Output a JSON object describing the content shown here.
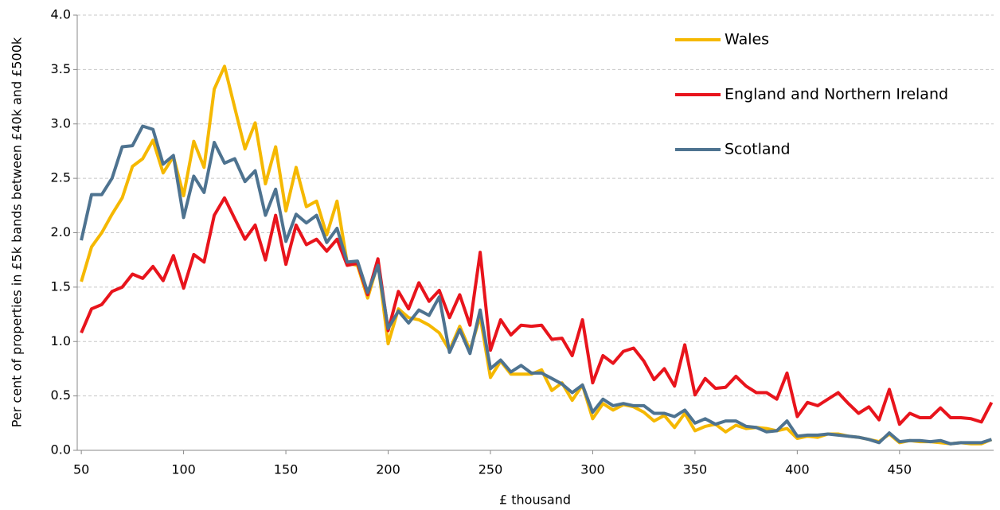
{
  "chart_data": {
    "type": "line",
    "y_label": "Per cent of properties in £5k bands between £40k and £500k",
    "x_label": "£ thousand",
    "x": [
      50,
      55,
      60,
      65,
      70,
      75,
      80,
      85,
      90,
      95,
      100,
      105,
      110,
      115,
      120,
      125,
      130,
      135,
      140,
      145,
      150,
      155,
      160,
      165,
      170,
      175,
      180,
      185,
      190,
      195,
      200,
      205,
      210,
      215,
      220,
      225,
      230,
      235,
      240,
      245,
      250,
      255,
      260,
      265,
      270,
      275,
      280,
      285,
      290,
      295,
      300,
      305,
      310,
      315,
      320,
      325,
      330,
      335,
      340,
      345,
      350,
      355,
      360,
      365,
      370,
      375,
      380,
      385,
      390,
      395,
      400,
      405,
      410,
      415,
      420,
      425,
      430,
      435,
      440,
      445,
      450,
      455,
      460,
      465,
      470,
      475,
      480,
      485,
      490,
      495
    ],
    "xlim": [
      48,
      496
    ],
    "xticks": [
      50,
      100,
      150,
      200,
      250,
      300,
      350,
      400,
      450
    ],
    "ylim": [
      0,
      4
    ],
    "yticks": [
      {
        "value": 0,
        "label": "0.0"
      },
      0.5,
      {
        "value": 1,
        "label": "1.0"
      },
      1.5,
      {
        "value": 2,
        "label": "2.0"
      },
      2.5,
      {
        "value": 3,
        "label": "3.0"
      },
      3.5,
      {
        "value": 4,
        "label": "4.0"
      }
    ],
    "grid": true,
    "legend": "top-right",
    "series": [
      {
        "name": "Wales",
        "color": "#f5b800",
        "values": [
          1.55,
          1.87,
          2.0,
          2.17,
          2.32,
          2.61,
          2.68,
          2.85,
          2.55,
          2.7,
          2.34,
          2.84,
          2.6,
          3.32,
          3.53,
          3.15,
          2.77,
          3.01,
          2.45,
          2.79,
          2.2,
          2.6,
          2.24,
          2.29,
          1.98,
          2.29,
          1.72,
          1.7,
          1.4,
          1.72,
          0.98,
          1.3,
          1.22,
          1.2,
          1.15,
          1.08,
          0.92,
          1.14,
          0.92,
          1.23,
          0.67,
          0.82,
          0.7,
          0.7,
          0.7,
          0.74,
          0.55,
          0.62,
          0.46,
          0.6,
          0.29,
          0.43,
          0.37,
          0.42,
          0.4,
          0.35,
          0.27,
          0.32,
          0.21,
          0.34,
          0.18,
          0.22,
          0.24,
          0.17,
          0.23,
          0.2,
          0.21,
          0.2,
          0.18,
          0.2,
          0.11,
          0.13,
          0.12,
          0.15,
          0.15,
          0.13,
          0.12,
          0.1,
          0.08,
          0.15,
          0.07,
          0.09,
          0.08,
          0.08,
          0.07,
          0.06,
          0.07,
          0.06,
          0.06,
          0.1
        ]
      },
      {
        "name": "England and Northern Ireland",
        "color": "#e8141c",
        "values": [
          1.08,
          1.3,
          1.34,
          1.46,
          1.5,
          1.62,
          1.58,
          1.69,
          1.56,
          1.79,
          1.49,
          1.8,
          1.73,
          2.16,
          2.32,
          2.13,
          1.94,
          2.07,
          1.75,
          2.16,
          1.71,
          2.07,
          1.89,
          1.94,
          1.83,
          1.94,
          1.7,
          1.72,
          1.43,
          1.76,
          1.1,
          1.46,
          1.3,
          1.54,
          1.37,
          1.47,
          1.22,
          1.43,
          1.15,
          1.82,
          0.92,
          1.2,
          1.06,
          1.15,
          1.14,
          1.15,
          1.02,
          1.03,
          0.87,
          1.2,
          0.62,
          0.87,
          0.8,
          0.91,
          0.94,
          0.82,
          0.65,
          0.75,
          0.59,
          0.97,
          0.51,
          0.66,
          0.57,
          0.58,
          0.68,
          0.59,
          0.53,
          0.53,
          0.47,
          0.71,
          0.31,
          0.44,
          0.41,
          0.47,
          0.53,
          0.43,
          0.34,
          0.4,
          0.28,
          0.56,
          0.24,
          0.34,
          0.3,
          0.3,
          0.39,
          0.3,
          0.3,
          0.29,
          0.26,
          0.44
        ]
      },
      {
        "name": "Scotland",
        "color": "#4e7390",
        "values": [
          1.93,
          2.35,
          2.35,
          2.5,
          2.79,
          2.8,
          2.98,
          2.95,
          2.63,
          2.71,
          2.14,
          2.52,
          2.37,
          2.83,
          2.64,
          2.68,
          2.47,
          2.57,
          2.16,
          2.4,
          1.92,
          2.17,
          2.09,
          2.16,
          1.91,
          2.04,
          1.73,
          1.74,
          1.45,
          1.7,
          1.12,
          1.28,
          1.17,
          1.29,
          1.24,
          1.41,
          0.9,
          1.11,
          0.89,
          1.29,
          0.75,
          0.83,
          0.72,
          0.78,
          0.71,
          0.71,
          0.66,
          0.61,
          0.53,
          0.6,
          0.35,
          0.47,
          0.41,
          0.43,
          0.41,
          0.41,
          0.34,
          0.34,
          0.31,
          0.37,
          0.25,
          0.29,
          0.24,
          0.27,
          0.27,
          0.22,
          0.21,
          0.17,
          0.18,
          0.27,
          0.13,
          0.14,
          0.14,
          0.15,
          0.14,
          0.13,
          0.12,
          0.1,
          0.07,
          0.16,
          0.08,
          0.09,
          0.09,
          0.08,
          0.09,
          0.06,
          0.07,
          0.07,
          0.07,
          0.1
        ]
      }
    ]
  }
}
